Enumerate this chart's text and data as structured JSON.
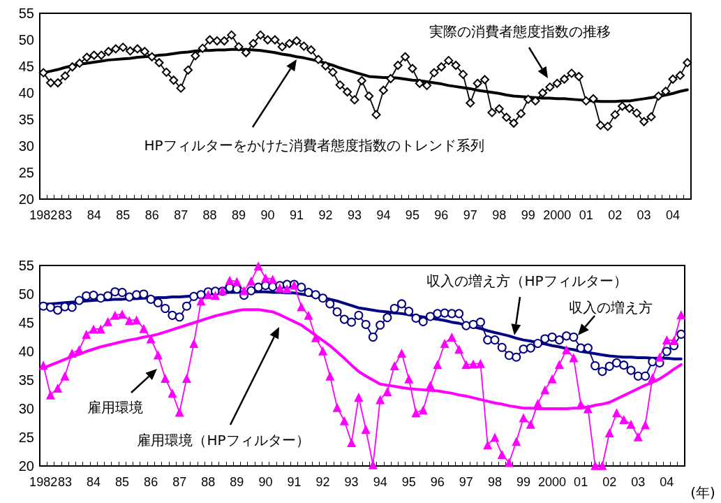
{
  "chart_data": [
    {
      "type": "line",
      "categories": [
        "1982",
        null,
        null,
        "83",
        null,
        null,
        null,
        "84",
        null,
        null,
        null,
        "85",
        null,
        null,
        null,
        "86",
        null,
        null,
        null,
        "87",
        null,
        null,
        null,
        "88",
        null,
        null,
        null,
        "89",
        null,
        null,
        null,
        "90",
        null,
        null,
        null,
        "91",
        null,
        null,
        null,
        "92",
        null,
        null,
        null,
        "93",
        null,
        null,
        null,
        "94",
        null,
        null,
        null,
        "95",
        null,
        null,
        null,
        "96",
        null,
        null,
        null,
        "97",
        null,
        null,
        null,
        "98",
        null,
        null,
        null,
        "99",
        null,
        null,
        null,
        "2000",
        null,
        null,
        null,
        "01",
        null,
        null,
        null,
        "02",
        null,
        null,
        null,
        "03",
        null,
        null,
        null,
        "04",
        null,
        null
      ],
      "ylim": [
        20,
        55
      ],
      "yticks": [
        20,
        25,
        30,
        35,
        40,
        45,
        50,
        55
      ],
      "grid": false,
      "legend": false,
      "series": [
        {
          "name": "実際の消費者態度指数の推移",
          "color": "#000000",
          "marker": "diamond",
          "values": [
            43.8,
            41.9,
            41.9,
            43.2,
            44.9,
            45.6,
            46.7,
            47.1,
            47.1,
            47.8,
            48.3,
            48.6,
            47.9,
            48.3,
            47.8,
            46.8,
            45.7,
            43.9,
            42.4,
            40.9,
            44.3,
            47.0,
            48.4,
            50.0,
            49.8,
            49.8,
            50.9,
            48.7,
            47.6,
            49.3,
            50.9,
            50.0,
            50.0,
            48.7,
            49.3,
            49.8,
            48.8,
            48.1,
            46.3,
            45.1,
            43.9,
            41.5,
            40.2,
            38.7,
            42.3,
            39.4,
            35.9,
            40.5,
            42.7,
            45.2,
            46.8,
            44.6,
            41.8,
            41.4,
            43.8,
            44.9,
            46.1,
            45.2,
            43.5,
            38.1,
            41.8,
            42.5,
            36.3,
            37.0,
            35.4,
            34.3,
            36.1,
            38.8,
            38.5,
            40.0,
            41.1,
            41.8,
            42.6,
            43.7,
            43.1,
            38.5,
            38.9,
            33.9,
            33.7,
            35.9,
            37.5,
            37.1,
            36.2,
            34.6,
            35.5,
            39.4,
            40.3,
            42.6,
            43.3,
            45.7
          ]
        },
        {
          "name": "HPフィルターをかけた消費者態度指数のトレンド系列",
          "color": "#000000",
          "marker": "none",
          "values": [
            43.8,
            44.1,
            44.4,
            44.8,
            45.1,
            45.4,
            45.6,
            45.8,
            46.0,
            46.2,
            46.3,
            46.4,
            46.5,
            46.7,
            46.8,
            46.9,
            47.1,
            47.2,
            47.4,
            47.6,
            47.7,
            47.9,
            48.0,
            48.0,
            48.1,
            48.1,
            48.2,
            48.2,
            48.2,
            48.1,
            48.0,
            47.8,
            47.6,
            47.3,
            47.1,
            46.8,
            46.6,
            46.3,
            46.0,
            45.6,
            45.2,
            44.7,
            44.3,
            43.9,
            43.5,
            43.1,
            43.0,
            42.9,
            42.9,
            42.8,
            42.6,
            42.4,
            42.3,
            42.1,
            41.9,
            41.7,
            41.4,
            41.2,
            41.0,
            40.8,
            40.5,
            40.3,
            40.1,
            39.9,
            39.6,
            39.4,
            39.3,
            39.2,
            39.1,
            39.0,
            39.0,
            38.9,
            38.9,
            38.8,
            38.7,
            38.6,
            38.5,
            38.4,
            38.4,
            38.4,
            38.5,
            38.5,
            38.7,
            38.9,
            39.1,
            39.3,
            39.6,
            39.9,
            40.3,
            40.6
          ]
        }
      ]
    },
    {
      "type": "line",
      "xlabel": "(年)",
      "categories": [
        "1982",
        null,
        null,
        "83",
        null,
        null,
        null,
        "84",
        null,
        null,
        null,
        "85",
        null,
        null,
        null,
        "86",
        null,
        null,
        null,
        "87",
        null,
        null,
        null,
        "88",
        null,
        null,
        null,
        "89",
        null,
        null,
        null,
        "90",
        null,
        null,
        null,
        "91",
        null,
        null,
        null,
        "92",
        null,
        null,
        null,
        "93",
        null,
        null,
        null,
        "94",
        null,
        null,
        null,
        "95",
        null,
        null,
        null,
        "96",
        null,
        null,
        null,
        "97",
        null,
        null,
        null,
        "98",
        null,
        null,
        null,
        "99",
        null,
        null,
        null,
        "2000",
        null,
        null,
        null,
        "01",
        null,
        null,
        null,
        "02",
        null,
        null,
        null,
        "03",
        null,
        null,
        null,
        "04",
        null,
        null
      ],
      "ylim": [
        20,
        55
      ],
      "yticks": [
        20,
        25,
        30,
        35,
        40,
        45,
        50,
        55
      ],
      "grid": false,
      "legend": false,
      "series": [
        {
          "name": "収入の増え方",
          "color": "#000080",
          "marker": "circle",
          "values": [
            47.9,
            47.7,
            47.2,
            47.8,
            47.7,
            48.9,
            49.7,
            49.8,
            49.3,
            49.7,
            50.4,
            50.3,
            49.5,
            49.9,
            50.0,
            49.1,
            48.5,
            47.5,
            46.3,
            46.0,
            47.9,
            49.6,
            49.9,
            50.4,
            50.5,
            50.5,
            51.1,
            50.9,
            49.8,
            50.6,
            51.2,
            51.5,
            51.3,
            51.5,
            51.7,
            51.7,
            51.2,
            50.3,
            49.9,
            49.3,
            48.3,
            46.9,
            45.6,
            45.1,
            46.3,
            44.7,
            42.5,
            44.6,
            45.9,
            47.5,
            48.3,
            47.0,
            45.8,
            45.2,
            46.1,
            46.6,
            46.7,
            46.6,
            46.6,
            44.5,
            44.7,
            45.1,
            42.0,
            42.0,
            40.7,
            39.3,
            39.0,
            40.4,
            40.6,
            41.4,
            42.2,
            42.5,
            42.0,
            42.7,
            42.5,
            40.6,
            40.6,
            37.5,
            36.5,
            37.4,
            38.0,
            37.6,
            36.7,
            35.7,
            35.7,
            38.2,
            38.0,
            40.0,
            41.0,
            43.0
          ]
        },
        {
          "name": "収入の増え方（HPフィルター）",
          "color": "#000080",
          "marker": "none",
          "values": [
            48.2,
            48.3,
            48.4,
            48.5,
            48.6,
            48.7,
            48.8,
            48.9,
            49.0,
            49.0,
            49.1,
            49.1,
            49.2,
            49.2,
            49.3,
            49.3,
            49.4,
            49.4,
            49.5,
            49.5,
            49.6,
            49.7,
            49.8,
            50.0,
            50.1,
            50.2,
            50.3,
            50.3,
            50.4,
            50.4,
            50.4,
            50.4,
            50.3,
            50.3,
            50.2,
            50.2,
            50.0,
            49.8,
            49.6,
            49.4,
            49.1,
            48.8,
            48.4,
            48.0,
            47.6,
            47.4,
            47.2,
            47.0,
            46.9,
            46.7,
            46.6,
            46.4,
            46.2,
            46.0,
            45.8,
            45.6,
            45.4,
            45.1,
            44.9,
            44.6,
            44.3,
            44.0,
            43.6,
            43.3,
            43.0,
            42.7,
            42.3,
            42.0,
            41.8,
            41.5,
            41.3,
            41.0,
            40.8,
            40.5,
            40.3,
            40.0,
            39.8,
            39.6,
            39.4,
            39.2,
            39.1,
            39.0,
            39.0,
            38.9,
            38.9,
            38.8,
            38.8,
            38.8,
            38.7,
            38.7
          ]
        },
        {
          "name": "雇用環境",
          "color": "#ff00ff",
          "marker": "triangle",
          "values": [
            37.6,
            32.4,
            33.6,
            35.7,
            39.7,
            40.3,
            43.0,
            43.9,
            43.9,
            45.2,
            46.3,
            46.5,
            45.4,
            45.5,
            44.0,
            42.2,
            39.4,
            35.3,
            32.7,
            29.4,
            35.3,
            41.4,
            48.8,
            49.9,
            49.8,
            50.6,
            52.4,
            52.2,
            50.6,
            52.3,
            54.9,
            52.8,
            52.6,
            51.1,
            50.9,
            51.6,
            47.8,
            46.3,
            42.4,
            40.1,
            35.7,
            30.2,
            27.9,
            24.1,
            32.0,
            26.4,
            20.2,
            31.6,
            33.0,
            37.5,
            39.7,
            35.2,
            29.3,
            29.8,
            34.1,
            37.7,
            41.4,
            42.5,
            40.4,
            37.7,
            37.8,
            37.9,
            23.7,
            25.0,
            22.0,
            20.6,
            24.3,
            28.4,
            27.3,
            30.9,
            33.3,
            35.2,
            37.7,
            40.3,
            38.9,
            30.8,
            30.0,
            20.1,
            20.1,
            25.8,
            29.3,
            28.1,
            27.3,
            25.1,
            27.2,
            35.4,
            39.0,
            42.0,
            41.9,
            46.4
          ]
        },
        {
          "name": "雇用環境（HPフィルター）",
          "color": "#ff00ff",
          "marker": "none",
          "values": [
            37.1,
            37.6,
            38.1,
            38.6,
            39.1,
            39.5,
            40.0,
            40.4,
            40.8,
            41.1,
            41.4,
            41.7,
            42.0,
            42.2,
            42.5,
            42.7,
            43.0,
            43.4,
            43.8,
            44.2,
            44.6,
            45.0,
            45.4,
            45.8,
            46.2,
            46.5,
            46.8,
            47.1,
            47.3,
            47.3,
            47.3,
            47.1,
            46.9,
            46.4,
            45.8,
            45.2,
            44.6,
            43.7,
            42.8,
            41.9,
            41.0,
            39.9,
            38.8,
            37.6,
            36.5,
            35.7,
            35.0,
            34.3,
            34.1,
            33.9,
            33.7,
            33.5,
            33.4,
            33.3,
            33.2,
            33.1,
            32.9,
            32.7,
            32.4,
            32.2,
            31.9,
            31.6,
            31.3,
            31.0,
            30.8,
            30.5,
            30.3,
            30.1,
            30.1,
            30.0,
            30.0,
            30.0,
            30.0,
            30.0,
            30.1,
            30.1,
            30.3,
            30.6,
            30.8,
            31.1,
            31.7,
            32.3,
            32.9,
            33.5,
            34.1,
            34.6,
            35.2,
            36.0,
            36.9,
            37.7
          ]
        }
      ]
    }
  ]
}
